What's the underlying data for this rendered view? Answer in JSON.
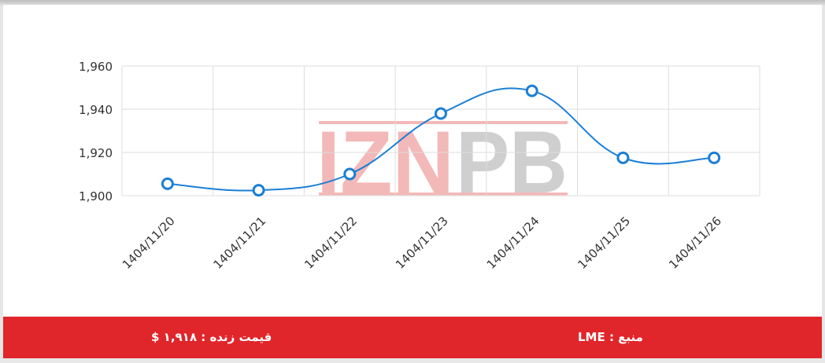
{
  "chart_data": {
    "type": "line",
    "categories": [
      "1404/11/20",
      "1404/11/21",
      "1404/11/22",
      "1404/11/23",
      "1404/11/24",
      "1404/11/25",
      "1404/11/26"
    ],
    "values": [
      1905.5,
      1902.5,
      1910,
      1938,
      1948.5,
      1917.5,
      1917.5
    ],
    "yticks": [
      "1,900",
      "1,920",
      "1,940",
      "1,960"
    ],
    "ylim": [
      1900,
      1960
    ],
    "grid": true,
    "smooth": true,
    "line_color": "#1a7fd6",
    "marker": "hollow-circle"
  },
  "watermark": {
    "text": "IZNPB",
    "left_part": "IZN",
    "right_part": "PB",
    "left_color": "#f3b8b8",
    "right_color": "#cfcfcf"
  },
  "footer": {
    "live_price": "قیمت زنده : ۱,۹۱۸ $",
    "source": "منبع : LME",
    "background": "#e0262b"
  }
}
